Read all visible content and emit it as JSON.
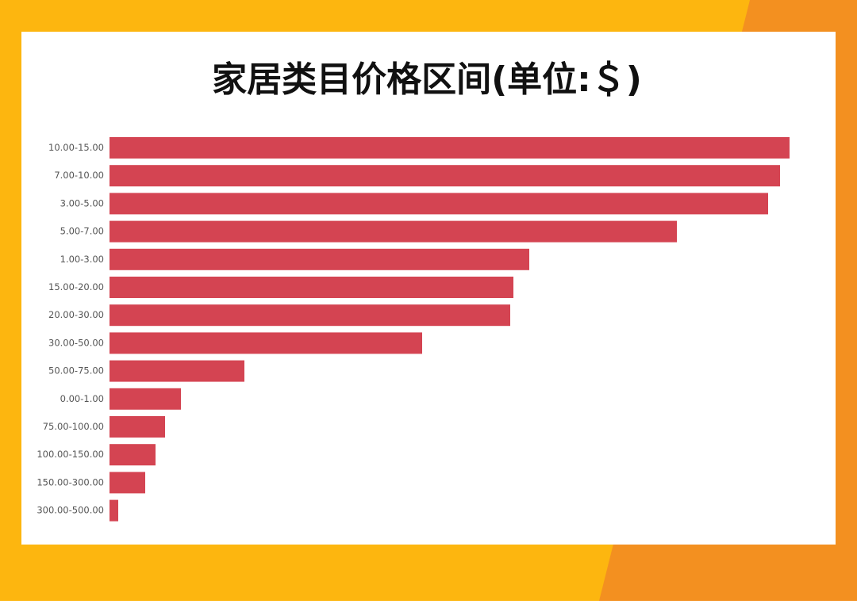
{
  "chart_data": {
    "type": "bar",
    "orientation": "horizontal",
    "title": "家居类目价格区间(单位:＄)",
    "categories": [
      "10.00-15.00",
      "7.00-10.00",
      "3.00-5.00",
      "5.00-7.00",
      "1.00-3.00",
      "15.00-20.00",
      "20.00-30.00",
      "30.00-50.00",
      "50.00-75.00",
      "0.00-1.00",
      "75.00-100.00",
      "100.00-150.00",
      "150.00-300.00",
      "300.00-500.00"
    ],
    "values": [
      857,
      845,
      830,
      715,
      529,
      509,
      505,
      394,
      170,
      90,
      70,
      58,
      45,
      11
    ],
    "color": "#d44452"
  }
}
